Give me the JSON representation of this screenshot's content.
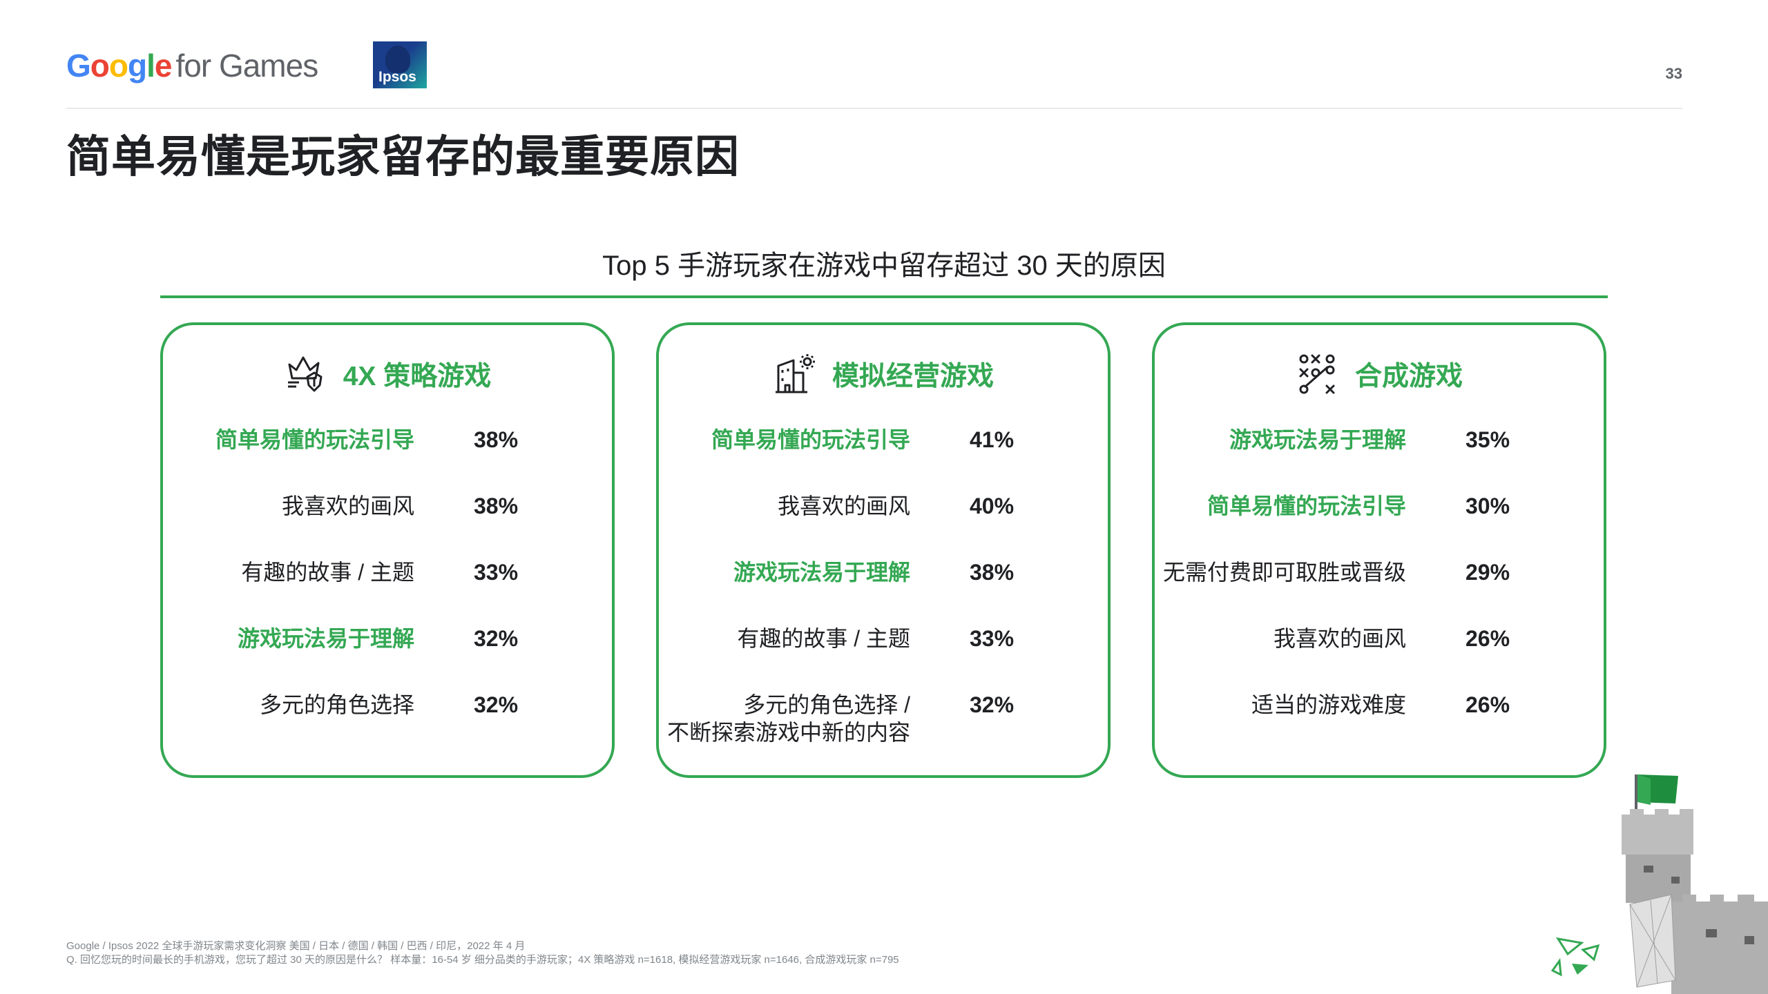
{
  "header": {
    "google_letters": [
      {
        "ch": "G",
        "color": "#4285F4"
      },
      {
        "ch": "o",
        "color": "#EA4335"
      },
      {
        "ch": "o",
        "color": "#FBBC05"
      },
      {
        "ch": "g",
        "color": "#4285F4"
      },
      {
        "ch": "l",
        "color": "#34A853"
      },
      {
        "ch": "e",
        "color": "#EA4335"
      }
    ],
    "logo_rest": "for Games",
    "partner_logo": "Ipsos",
    "page_number": "33"
  },
  "title": "简单易懂是玩家留存的最重要原因",
  "subtitle": "Top 5 手游玩家在游戏中留存超过 30 天的原因",
  "accent_color": "#34A853",
  "cards": [
    {
      "icon": "strategy-crown-icon",
      "title": "4X 策略游戏",
      "rows": [
        {
          "label": "简单易懂的玩法引导",
          "value": "38%",
          "highlight": true
        },
        {
          "label": "我喜欢的画风",
          "value": "38%",
          "highlight": false
        },
        {
          "label": "有趣的故事 / 主题",
          "value": "33%",
          "highlight": false
        },
        {
          "label": "游戏玩法易于理解",
          "value": "32%",
          "highlight": true
        },
        {
          "label": "多元的角色选择",
          "value": "32%",
          "highlight": false
        }
      ]
    },
    {
      "icon": "building-sun-icon",
      "title": "模拟经营游戏",
      "rows": [
        {
          "label": "简单易懂的玩法引导",
          "value": "41%",
          "highlight": true
        },
        {
          "label": "我喜欢的画风",
          "value": "40%",
          "highlight": false
        },
        {
          "label": "游戏玩法易于理解",
          "value": "38%",
          "highlight": true
        },
        {
          "label": "有趣的故事 / 主题",
          "value": "33%",
          "highlight": false
        },
        {
          "label": "多元的角色选择 /",
          "label2": "不断探索游戏中新的内容",
          "value": "32%",
          "highlight": false
        }
      ]
    },
    {
      "icon": "tic-tac-toe-icon",
      "title": "合成游戏",
      "rows": [
        {
          "label": "游戏玩法易于理解",
          "value": "35%",
          "highlight": true
        },
        {
          "label": "简单易懂的玩法引导",
          "value": "30%",
          "highlight": true
        },
        {
          "label": "无需付费即可取胜或晋级",
          "value": "29%",
          "highlight": false
        },
        {
          "label": "我喜欢的画风",
          "value": "26%",
          "highlight": false
        },
        {
          "label": "适当的游戏难度",
          "value": "26%",
          "highlight": false
        }
      ]
    }
  ],
  "footer": {
    "line1": "Google / Ipsos 2022 全球手游玩家需求变化洞察 美国 / 日本 / 德国 / 韩国 / 巴西 / 印尼，2022 年 4 月",
    "line2": "Q. 回忆您玩的时间最长的手机游戏，您玩了超过 30 天的原因是什么？ 样本量：16-54 岁 细分品类的手游玩家；4X 策略游戏 n=1618, 模拟经营游戏玩家 n=1646, 合成游戏玩家 n=795"
  }
}
